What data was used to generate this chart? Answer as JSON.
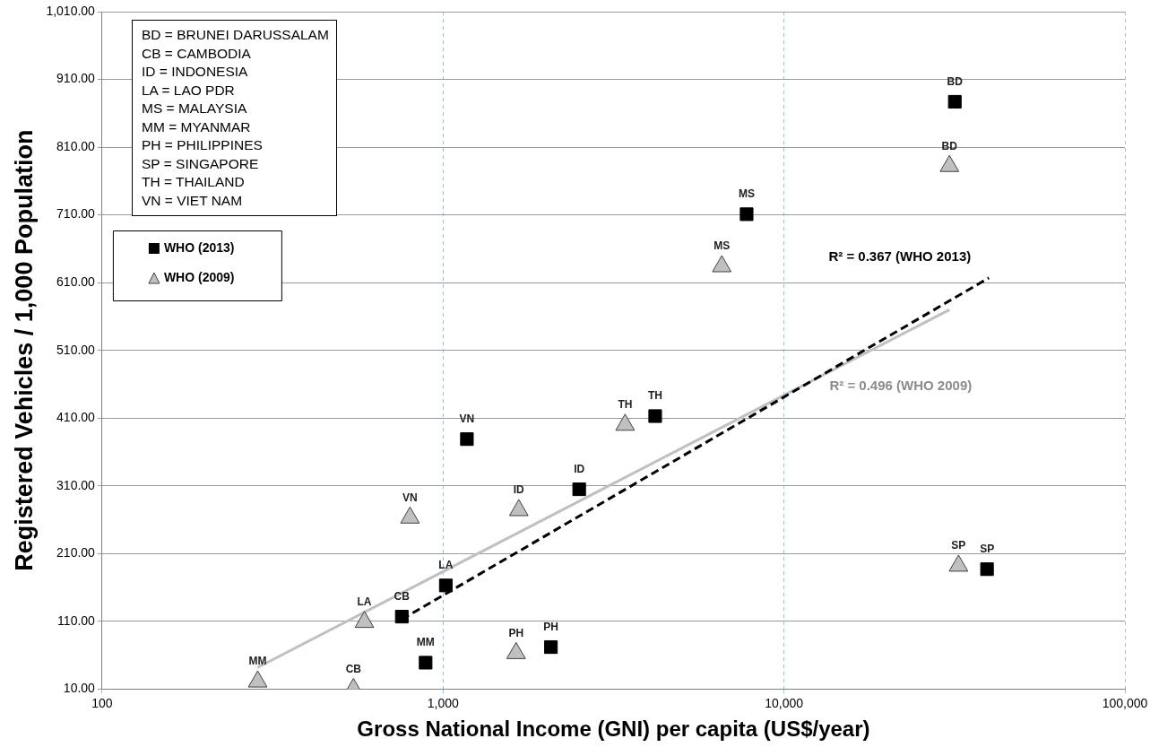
{
  "chart_data": {
    "type": "scatter",
    "xlabel": "Gross National Income (GNI) per capita (US$/year)",
    "ylabel": "Registered Vehicles / 1,000 Population",
    "log": "x",
    "grid": true,
    "legend": "top left",
    "xlim": [
      100,
      100000
    ],
    "xticks": [
      100,
      {
        "value": 1000,
        "label": "1,000"
      },
      {
        "value": 10000,
        "label": "10,000"
      },
      {
        "value": 100000,
        "label": "100,000"
      }
    ],
    "ylim": [
      10,
      1010
    ],
    "yticks": [
      {
        "value": 10,
        "label": "10.00"
      },
      {
        "value": 110,
        "label": "110.00"
      },
      {
        "value": 210,
        "label": "210.00"
      },
      {
        "value": 310,
        "label": "310.00"
      },
      {
        "value": 410,
        "label": "410.00"
      },
      {
        "value": 510,
        "label": "510.00"
      },
      {
        "value": 610,
        "label": "610.00"
      },
      {
        "value": 710,
        "label": "710.00"
      },
      {
        "value": 810,
        "label": "810.00"
      },
      {
        "value": 910,
        "label": "910.00"
      },
      {
        "value": 1010,
        "label": "1,010.00"
      }
    ],
    "series": [
      {
        "name": "WHO (2013)",
        "marker": "square",
        "color": "#000000",
        "x": [
          31700,
          7770,
          4190,
          1175,
          2508,
          1019,
          757,
          889,
          2072,
          39400
        ],
        "values": [
          877,
          711,
          413,
          379,
          305,
          163,
          117,
          49,
          72,
          187
        ]
      },
      {
        "name": "WHO (2009)",
        "marker": "triangle",
        "color": "#c0c0c0",
        "x": [
          30570,
          6570,
          3420,
          1668,
          800,
          588,
          286,
          546,
          1638,
          32500
        ],
        "values": [
          782,
          634,
          400,
          274,
          263,
          109,
          21,
          10,
          63,
          192
        ]
      },
      {
        "name": "R² = 0.367 (WHO 2013)",
        "type": "line",
        "line_style": "dashed",
        "marker": "none",
        "color": "#000000",
        "x": [
          757,
          39900
        ],
        "values": [
          113,
          617
        ]
      },
      {
        "name": "R² = 0.496 (WHO 2009)",
        "type": "line",
        "line_style": "solid",
        "marker": "none",
        "color": "#c0c0c0",
        "x": [
          286,
          30570
        ],
        "values": [
          42,
          570
        ]
      }
    ],
    "annotations": [
      "BD = BRUNEI DARUSSALAM",
      "CB = CAMBODIA",
      "ID = INDONESIA",
      "LA = LAO PDR",
      "MS = MALAYSIA",
      "MM = MYANMAR",
      "PH = PHILIPPINES",
      "SP = SINGAPORE",
      "TH = THAILAND",
      "VN = VIET NAM",
      {
        "text": "BD",
        "x": 31700,
        "y": 877
      },
      {
        "text": "MS",
        "x": 7770,
        "y": 711
      },
      {
        "text": "TH",
        "x": 4190,
        "y": 413
      },
      {
        "text": "VN",
        "x": 1175,
        "y": 379
      },
      {
        "text": "ID",
        "x": 2508,
        "y": 305
      },
      {
        "text": "LA",
        "x": 1019,
        "y": 163
      },
      {
        "text": "CB",
        "x": 757,
        "y": 117
      },
      {
        "text": "MM",
        "x": 889,
        "y": 49
      },
      {
        "text": "PH",
        "x": 2072,
        "y": 72
      },
      {
        "text": "SP",
        "x": 39400,
        "y": 187
      },
      {
        "text": "BD",
        "x": 30570,
        "y": 782
      },
      {
        "text": "MS",
        "x": 6570,
        "y": 634
      },
      {
        "text": "TH",
        "x": 3420,
        "y": 400
      },
      {
        "text": "ID",
        "x": 1668,
        "y": 274
      },
      {
        "text": "VN",
        "x": 800,
        "y": 263
      },
      {
        "text": "LA",
        "x": 588,
        "y": 109
      },
      {
        "text": "MM",
        "x": 286,
        "y": 21
      },
      {
        "text": "CB",
        "x": 546,
        "y": 10
      },
      {
        "text": "PH",
        "x": 1638,
        "y": 63
      },
      {
        "text": "SP",
        "x": 32500,
        "y": 192
      }
    ]
  }
}
